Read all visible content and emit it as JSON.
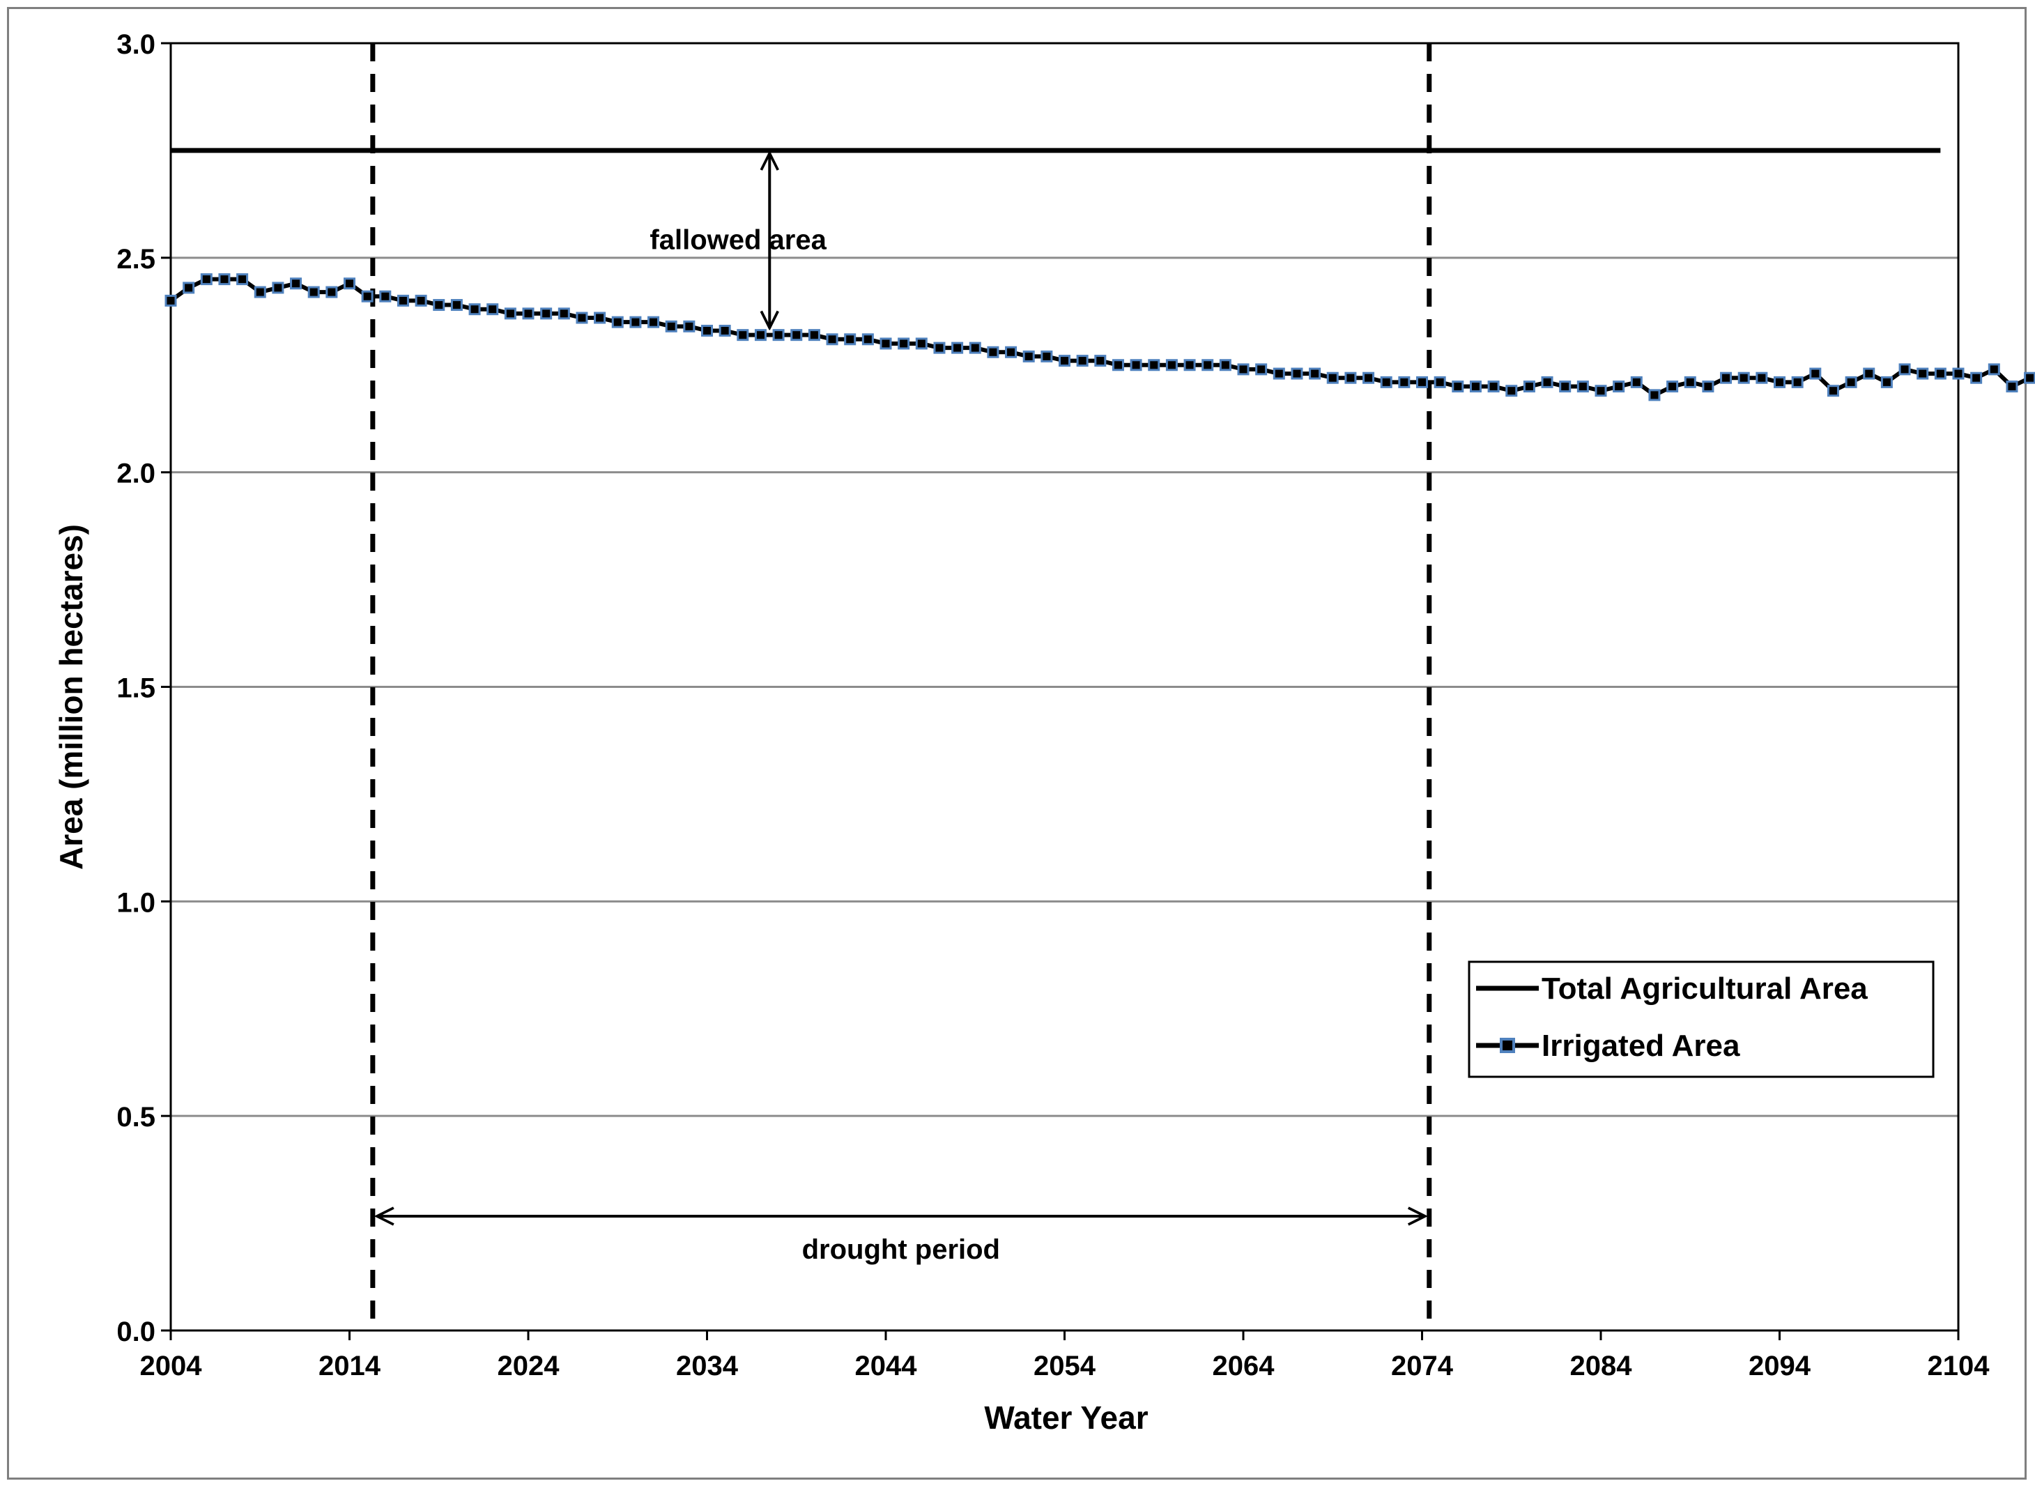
{
  "chart_data": {
    "type": "line",
    "title": "",
    "xlabel": "Water Year",
    "ylabel": "Area (million hectares)",
    "xlim": [
      2004,
      2104
    ],
    "ylim": [
      0.0,
      3.0
    ],
    "x_ticks": [
      "2004",
      "2014",
      "2024",
      "2034",
      "2044",
      "2054",
      "2064",
      "2074",
      "2084",
      "2094",
      "2104"
    ],
    "y_ticks": [
      "0.0",
      "0.5",
      "1.0",
      "1.5",
      "2.0",
      "2.5",
      "3.0"
    ],
    "grid": "horizontal",
    "legend_position": "lower-right",
    "series": [
      {
        "name": "Total Agricultural Area",
        "style": "solid-black",
        "color": "#000000",
        "x": [
          2004,
          2103
        ],
        "values": [
          2.75,
          2.75
        ]
      },
      {
        "name": "Irrigated Area",
        "style": "line-with-square-markers",
        "color": "#000000",
        "marker_color": "#4f81bd",
        "x_start": 2004,
        "x_step": 1,
        "values": [
          2.4,
          2.43,
          2.45,
          2.45,
          2.45,
          2.42,
          2.43,
          2.44,
          2.42,
          2.42,
          2.44,
          2.41,
          2.41,
          2.4,
          2.4,
          2.39,
          2.39,
          2.38,
          2.38,
          2.37,
          2.37,
          2.37,
          2.37,
          2.36,
          2.36,
          2.35,
          2.35,
          2.35,
          2.34,
          2.34,
          2.33,
          2.33,
          2.32,
          2.32,
          2.32,
          2.32,
          2.32,
          2.31,
          2.31,
          2.31,
          2.3,
          2.3,
          2.3,
          2.29,
          2.29,
          2.29,
          2.28,
          2.28,
          2.27,
          2.27,
          2.26,
          2.26,
          2.26,
          2.25,
          2.25,
          2.25,
          2.25,
          2.25,
          2.25,
          2.25,
          2.24,
          2.24,
          2.23,
          2.23,
          2.23,
          2.22,
          2.22,
          2.22,
          2.21,
          2.21,
          2.21,
          2.21,
          2.2,
          2.2,
          2.2,
          2.19,
          2.2,
          2.21,
          2.2,
          2.2,
          2.19,
          2.2,
          2.21,
          2.18,
          2.2,
          2.21,
          2.2,
          2.22,
          2.22,
          2.22,
          2.21,
          2.21,
          2.23,
          2.19,
          2.21,
          2.23,
          2.21,
          2.24,
          2.23,
          2.23,
          2.23,
          2.22,
          2.24,
          2.2,
          2.22
        ]
      }
    ],
    "drought_start": 2015.3,
    "drought_end": 2074.4,
    "annotations": [
      "fallowed area",
      "drought period"
    ],
    "fallowed_arrow_x": 2037.5,
    "fallowed_arrow_y": [
      2.33,
      2.75
    ]
  }
}
